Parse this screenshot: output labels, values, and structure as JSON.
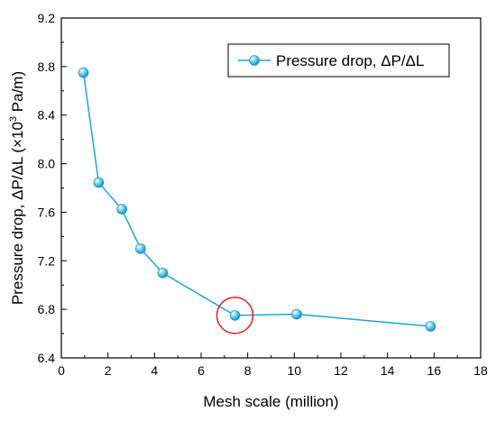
{
  "chart_data": {
    "type": "line",
    "xlabel": "Mesh scale (million)",
    "ylabel": {
      "prefix": "Pressure drop, ΔP/ΔL (×10",
      "superscript": "3",
      "suffix": " Pa/m)"
    },
    "xlim": [
      0,
      18
    ],
    "ylim": [
      6.4,
      9.2
    ],
    "x_ticks": [
      "0",
      "2",
      "4",
      "6",
      "8",
      "10",
      "12",
      "14",
      "16",
      "18"
    ],
    "y_ticks": [
      "6.4",
      "6.8",
      "7.2",
      "7.6",
      "8.0",
      "8.4",
      "8.8",
      "9.2"
    ],
    "grid": false,
    "legend_position": "top-right",
    "series": [
      {
        "name": "Pressure drop, ΔP/ΔL",
        "color": "#1ba6d9",
        "marker": "sphere",
        "x": [
          0.95,
          1.6,
          2.6,
          3.4,
          4.35,
          7.45,
          10.1,
          15.85
        ],
        "y": [
          8.75,
          7.845,
          7.625,
          7.3,
          7.1,
          6.75,
          6.76,
          6.66
        ]
      }
    ],
    "annotations": [
      {
        "type": "circle",
        "x": 7.45,
        "y": 6.75,
        "color": "#e02020"
      }
    ]
  }
}
